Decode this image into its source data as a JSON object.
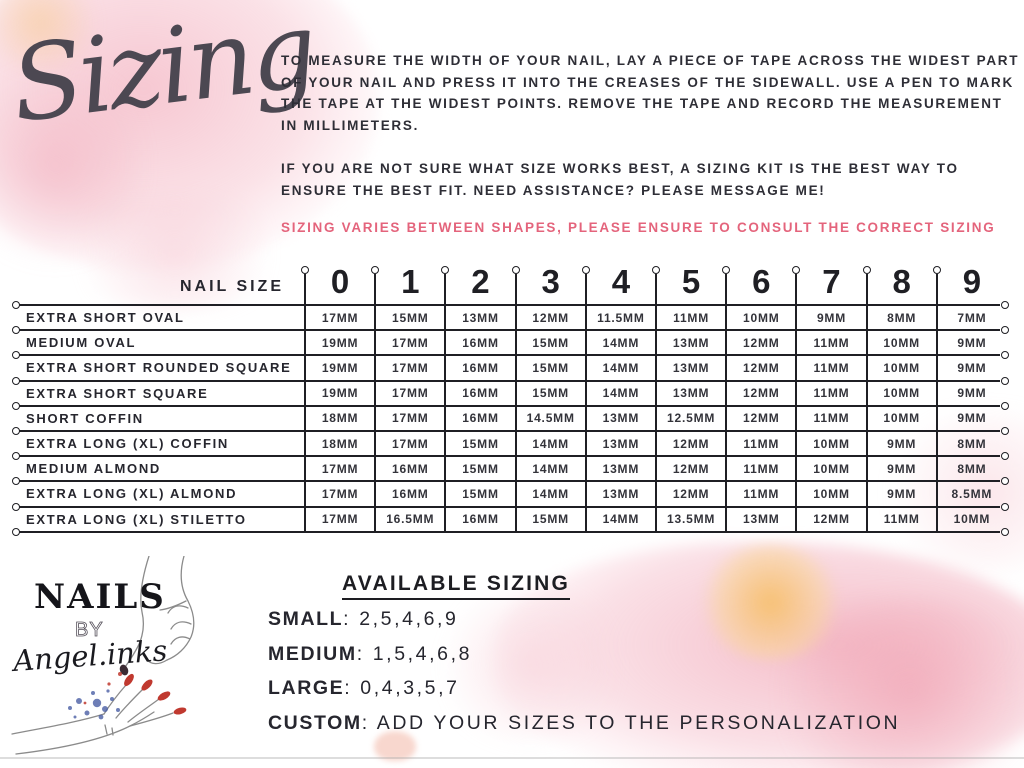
{
  "title": "Sizing",
  "instructions": {
    "para1_before": "TO MEASURE THE WIDTH OF YOUR NAIL, LAY A PIECE OF TAPE ACROSS THE WIDEST PART OF YOUR NAIL AND PRESS IT INTO THE CREASES OF THE SIDEWALL. USE A PEN TO MARK THE TAPE AT THE WIDEST POINTS. REMOVE THE TAPE AND RECORD THE MEASUREMENT IN ",
    "para1_bold": "MILLIMETERS",
    "para1_after": ".",
    "para2": "IF YOU ARE NOT SURE WHAT SIZE WORKS BEST, A SIZING KIT IS THE BEST WAY TO ENSURE THE BEST FIT. NEED ASSISTANCE? PLEASE MESSAGE ME!",
    "highlight": "SIZING VARIES BETWEEN SHAPES, PLEASE ENSURE TO CONSULT THE CORRECT SIZING"
  },
  "chart_data": {
    "type": "table",
    "corner_label": "NAIL SIZE",
    "columns": [
      "0",
      "1",
      "2",
      "3",
      "4",
      "5",
      "6",
      "7",
      "8",
      "9"
    ],
    "rows": [
      {
        "label": "EXTRA SHORT OVAL",
        "values": [
          "17MM",
          "15MM",
          "13MM",
          "12MM",
          "11.5MM",
          "11MM",
          "10MM",
          "9MM",
          "8MM",
          "7MM"
        ]
      },
      {
        "label": "MEDIUM OVAL",
        "values": [
          "19MM",
          "17MM",
          "16MM",
          "15MM",
          "14MM",
          "13MM",
          "12MM",
          "11MM",
          "10MM",
          "9MM"
        ]
      },
      {
        "label": "EXTRA SHORT ROUNDED SQUARE",
        "values": [
          "19MM",
          "17MM",
          "16MM",
          "15MM",
          "14MM",
          "13MM",
          "12MM",
          "11MM",
          "10MM",
          "9MM"
        ]
      },
      {
        "label": "EXTRA SHORT SQUARE",
        "values": [
          "19MM",
          "17MM",
          "16MM",
          "15MM",
          "14MM",
          "13MM",
          "12MM",
          "11MM",
          "10MM",
          "9MM"
        ]
      },
      {
        "label": "SHORT COFFIN",
        "values": [
          "18MM",
          "17MM",
          "16MM",
          "14.5MM",
          "13MM",
          "12.5MM",
          "12MM",
          "11MM",
          "10MM",
          "9MM"
        ]
      },
      {
        "label": "EXTRA LONG (XL) COFFIN",
        "values": [
          "18MM",
          "17MM",
          "15MM",
          "14MM",
          "13MM",
          "12MM",
          "11MM",
          "10MM",
          "9MM",
          "8MM"
        ]
      },
      {
        "label": "MEDIUM ALMOND",
        "values": [
          "17MM",
          "16MM",
          "15MM",
          "14MM",
          "13MM",
          "12MM",
          "11MM",
          "10MM",
          "9MM",
          "8MM"
        ]
      },
      {
        "label": "EXTRA LONG (XL) ALMOND",
        "values": [
          "17MM",
          "16MM",
          "15MM",
          "14MM",
          "13MM",
          "12MM",
          "11MM",
          "10MM",
          "9MM",
          "8.5MM"
        ]
      },
      {
        "label": "EXTRA LONG (XL) STILETTO",
        "values": [
          "17MM",
          "16.5MM",
          "16MM",
          "15MM",
          "14MM",
          "13.5MM",
          "13MM",
          "12MM",
          "11MM",
          "10MM"
        ]
      }
    ]
  },
  "logo": {
    "name": "NAILS",
    "by": "BY",
    "script": "Angel.inks"
  },
  "available_sizing": {
    "title": "AVAILABLE SIZING",
    "separator": ": ",
    "items": [
      {
        "label": "SMALL",
        "values": "2,5,4,6,9"
      },
      {
        "label": "MEDIUM",
        "values": "1,5,4,6,8"
      },
      {
        "label": "LARGE",
        "values": "0,4,3,5,7"
      },
      {
        "label": "CUSTOM",
        "values": "ADD YOUR SIZES TO THE PERSONALIZATION"
      }
    ]
  },
  "colors": {
    "accent_pink": "#e4647c",
    "text_dark": "#26262e",
    "watercolor_pink": "#f3b2c0",
    "watercolor_orange": "#f6bf69",
    "nail_red": "#c0392f",
    "splatter_blue": "#4a5fa5"
  }
}
